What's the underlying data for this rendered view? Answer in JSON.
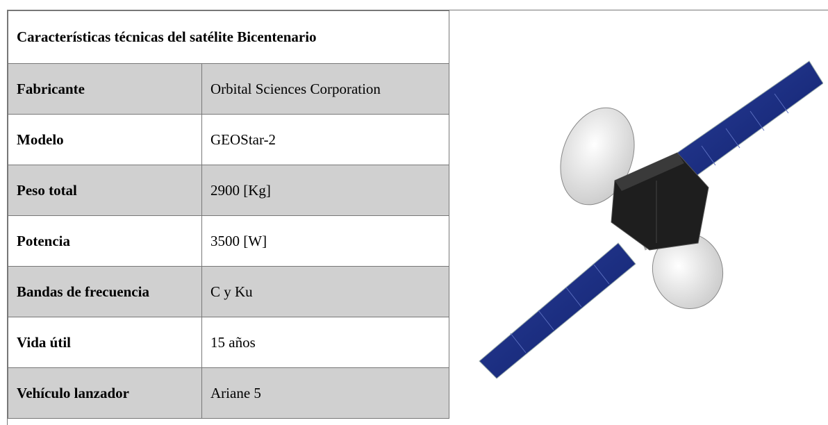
{
  "table": {
    "title": "Características técnicas del satélite Bicentenario",
    "rows": [
      [
        "Fabricante",
        "Orbital Sciences Corporation"
      ],
      [
        "Modelo",
        "GEOStar-2"
      ],
      [
        "Peso total",
        "2900 [Kg]"
      ],
      [
        "Potencia",
        "3500 [W]"
      ],
      [
        "Bandas de frecuencia",
        "C y Ku"
      ],
      [
        "Vida útil",
        "15 años"
      ],
      [
        "Vehículo lanzador",
        "Ariane 5"
      ]
    ]
  }
}
